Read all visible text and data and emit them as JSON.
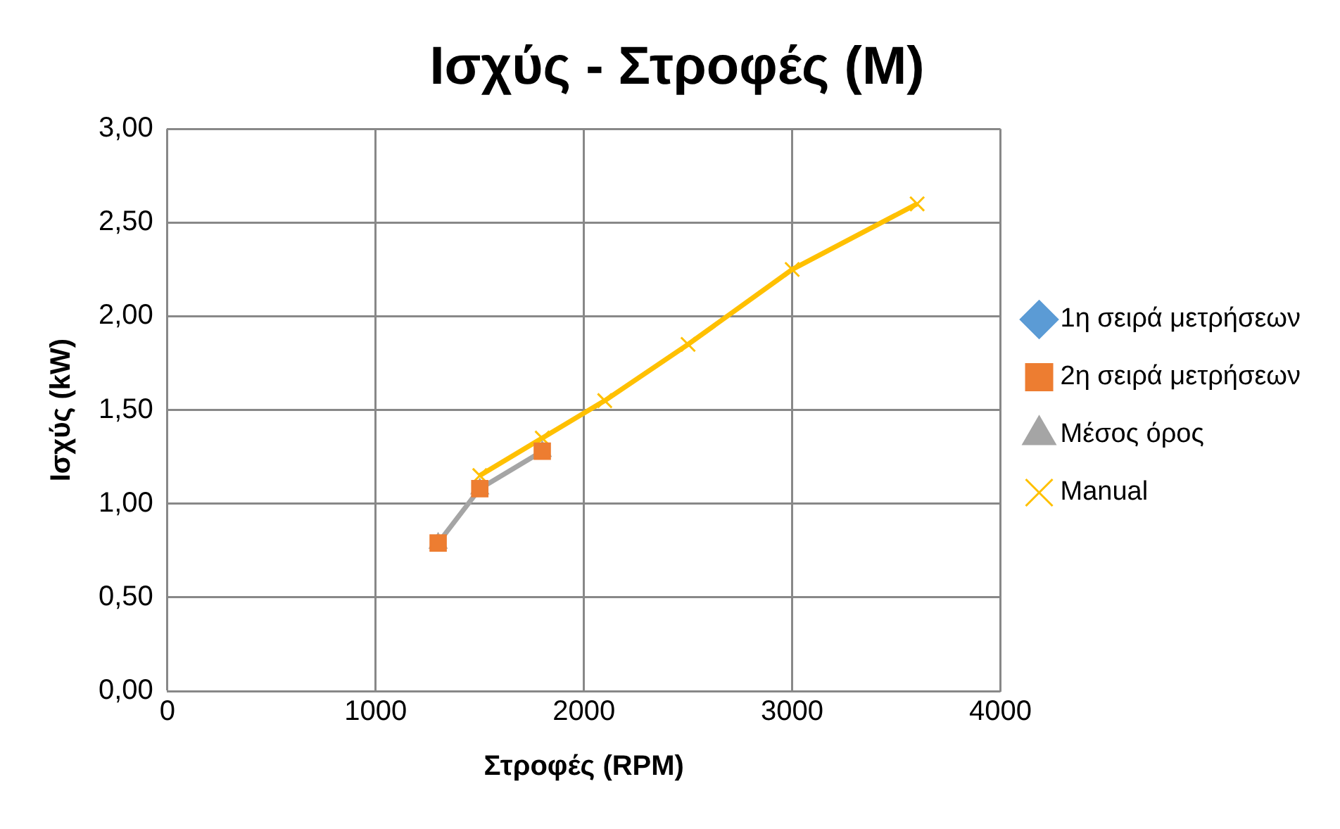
{
  "chart_data": {
    "type": "scatter",
    "title": "Ισχύς - Στροφές (M)",
    "xlabel": "Στροφές (RPM)",
    "ylabel": "Ισχύς (kW)",
    "xlim": [
      0,
      4000
    ],
    "xticks": [
      0,
      1000,
      2000,
      3000,
      4000
    ],
    "ylim": [
      0,
      3
    ],
    "yticks": [
      {
        "value": 0,
        "label": "0,00"
      },
      {
        "value": 0.5,
        "label": "0,50"
      },
      {
        "value": 1,
        "label": "1,00"
      },
      {
        "value": 1.5,
        "label": "1,50"
      },
      {
        "value": 2,
        "label": "2,00"
      },
      {
        "value": 2.5,
        "label": "2,50"
      },
      {
        "value": 3,
        "label": "3,00"
      }
    ],
    "grid": true,
    "legend": "right",
    "series": [
      {
        "name": "1η σειρά μετρήσεων",
        "type": "scatter",
        "marker": "diamond",
        "color": "#5b9bd5"
      },
      {
        "name": "2η σειρά μετρήσεων",
        "type": "scatter",
        "marker": "square",
        "color": "#ed7d31",
        "x": [
          1300,
          1500,
          1800
        ],
        "values": [
          0.79,
          1.08,
          1.28
        ]
      },
      {
        "name": "Μέσος όρος",
        "type": "line",
        "marker": "triangle",
        "color": "#a5a5a5",
        "x": [
          1300,
          1500,
          1800
        ],
        "values": [
          0.79,
          1.08,
          1.28
        ]
      },
      {
        "name": "Manual",
        "type": "line",
        "marker": "cross",
        "color": "#ffc000",
        "x": [
          1500,
          1800,
          2100,
          2500,
          3000,
          3600
        ],
        "values": [
          1.15,
          1.35,
          1.55,
          1.85,
          2.25,
          2.6
        ]
      }
    ]
  }
}
